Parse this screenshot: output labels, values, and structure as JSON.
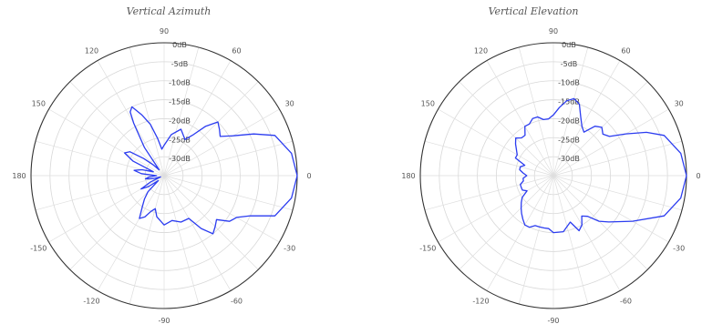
{
  "chart_data": [
    {
      "type": "line",
      "coordinate_system": "polar",
      "title": "Vertical Azimuth",
      "angle_unit": "deg",
      "radial_unit": "dB",
      "radial_range": [
        -35,
        0
      ],
      "angle_labels": [
        "0",
        "30",
        "60",
        "90",
        "120",
        "150",
        "180",
        "-150",
        "-120",
        "-90",
        "-60",
        "-30"
      ],
      "radial_labels": [
        "0dB",
        "-5dB",
        "-10dB",
        "-15dB",
        "-20dB",
        "-25dB",
        "-30dB"
      ],
      "line_color": "#2b3cf0",
      "grid": true,
      "series": [
        {
          "angle": [
            0,
            10,
            20,
            25,
            30,
            35,
            40,
            45,
            50,
            55,
            60,
            70,
            80,
            90,
            95,
            100,
            105,
            110,
            115,
            118,
            120,
            125,
            130,
            135,
            140,
            145,
            150,
            155,
            160,
            165,
            170,
            175,
            180,
            185,
            190,
            195,
            200,
            205,
            210,
            215,
            220,
            225,
            230,
            235,
            240,
            245,
            250,
            255,
            260,
            270,
            280,
            290,
            300,
            305,
            310,
            315,
            320,
            325,
            330,
            335,
            340,
            350
          ],
          "r_db": [
            0,
            -1,
            -4,
            -9,
            -14,
            -17,
            -16,
            -15,
            -18,
            -22,
            -24,
            -22,
            -24,
            -27,
            -28,
            -25,
            -21,
            -18,
            -15,
            -16,
            -19,
            -26,
            -33,
            -31,
            -28,
            -24,
            -23,
            -26,
            -32,
            -29,
            -27,
            -29,
            -33,
            -31,
            -30,
            -32,
            -34,
            -31,
            -28,
            -30,
            -33,
            -29,
            -27,
            -25,
            -22,
            -23,
            -25,
            -26,
            -24,
            -22,
            -23,
            -22,
            -22,
            -18,
            -15,
            -16,
            -17,
            -14,
            -13,
            -10,
            -4,
            -1
          ]
        }
      ]
    },
    {
      "type": "line",
      "coordinate_system": "polar",
      "title": "Vertical Elevation",
      "angle_unit": "deg",
      "radial_unit": "dB",
      "radial_range": [
        -35,
        0
      ],
      "angle_labels": [
        "0",
        "30",
        "60",
        "90",
        "120",
        "150",
        "180",
        "-150",
        "-120",
        "-90",
        "-60",
        "-30"
      ],
      "radial_labels": [
        "0dB",
        "-5dB",
        "-10dB",
        "-15dB",
        "-20dB",
        "-25dB",
        "-30dB"
      ],
      "line_color": "#2b3cf0",
      "grid": true,
      "series": [
        {
          "angle": [
            0,
            10,
            20,
            25,
            30,
            35,
            40,
            45,
            50,
            55,
            60,
            65,
            70,
            75,
            80,
            85,
            90,
            95,
            100,
            105,
            110,
            115,
            120,
            125,
            130,
            135,
            140,
            150,
            155,
            160,
            165,
            170,
            175,
            180,
            185,
            190,
            195,
            200,
            205,
            210,
            215,
            220,
            225,
            230,
            235,
            240,
            245,
            250,
            255,
            260,
            265,
            270,
            280,
            290,
            295,
            300,
            305,
            310,
            315,
            320,
            330,
            340,
            350
          ],
          "r_db": [
            0,
            -1,
            -4,
            -8,
            -13,
            -17,
            -18,
            -17,
            -18,
            -21,
            -20,
            -18,
            -15,
            -14,
            -15,
            -17,
            -19,
            -20,
            -20,
            -19,
            -19,
            -20,
            -20,
            -22,
            -22,
            -21,
            -22,
            -24,
            -24,
            -27,
            -26,
            -26,
            -27,
            -28,
            -27,
            -27,
            -26,
            -26,
            -26,
            -27,
            -25,
            -24,
            -23,
            -22,
            -21,
            -20,
            -20,
            -21,
            -21,
            -21,
            -21,
            -20,
            -20,
            -22,
            -19,
            -20,
            -22,
            -21,
            -18,
            -16,
            -11,
            -4,
            -1
          ]
        }
      ]
    }
  ]
}
